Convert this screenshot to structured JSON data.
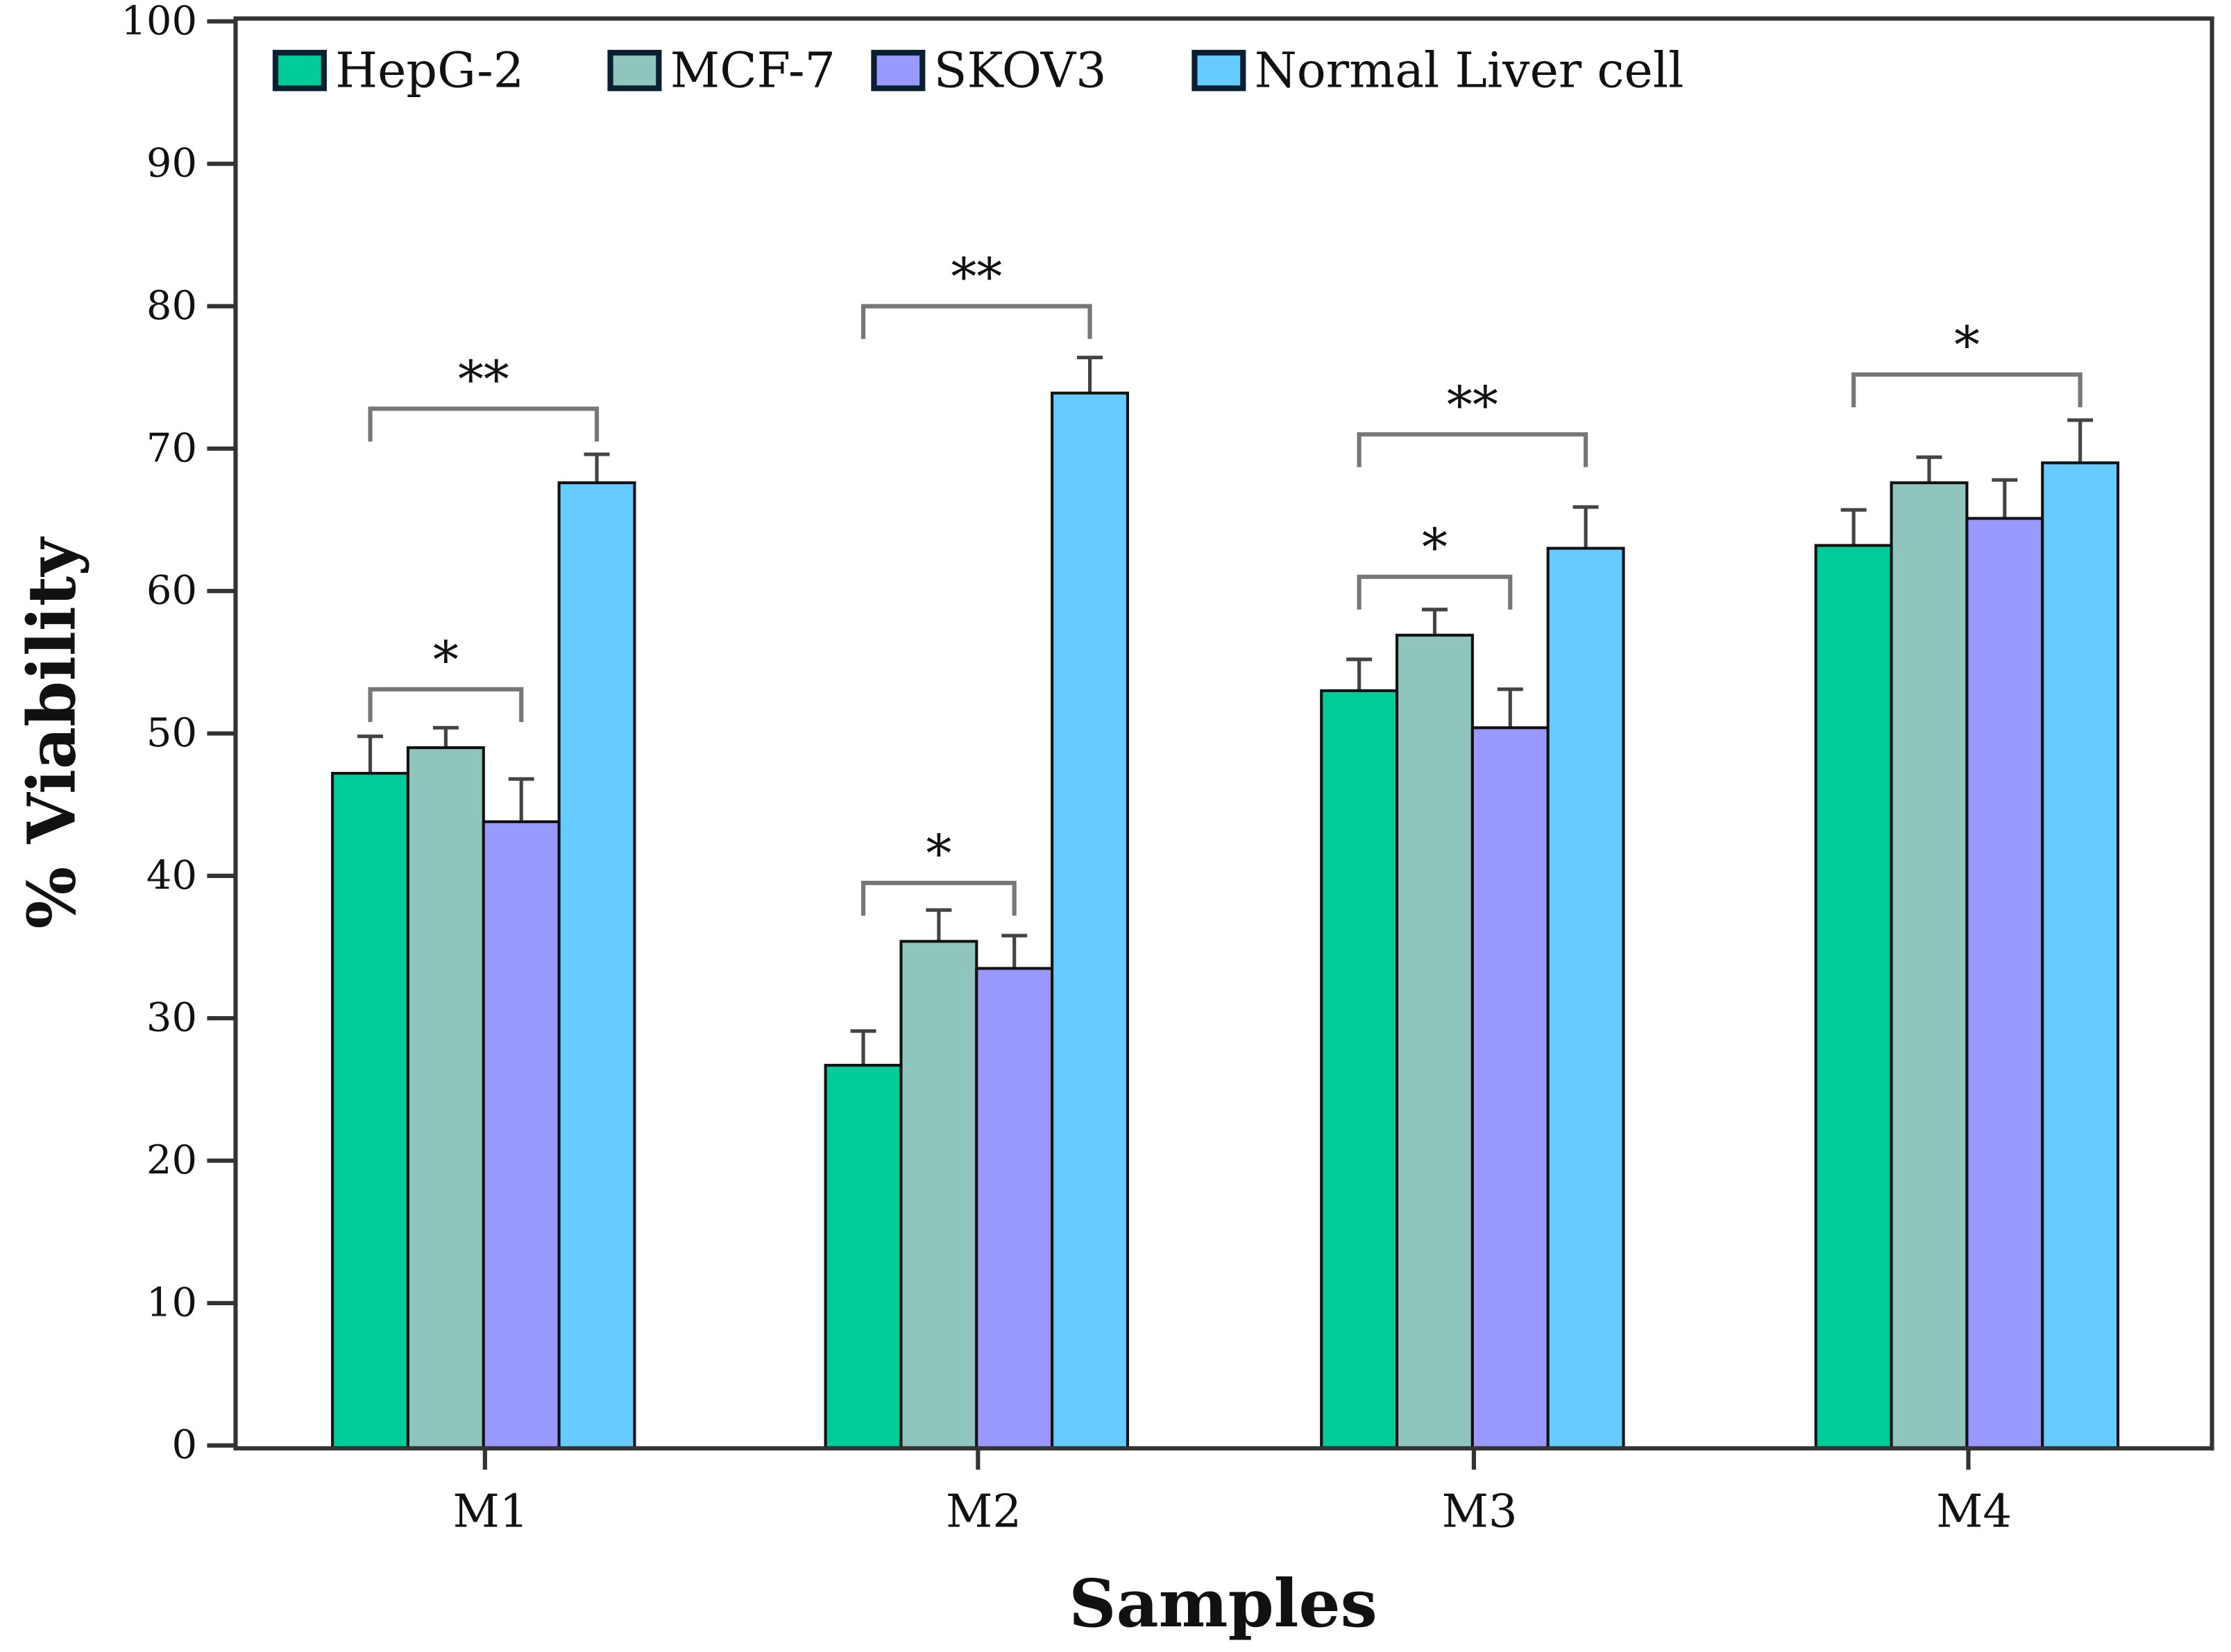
{
  "chart_data": {
    "type": "bar",
    "title": "",
    "xlabel": "Samples",
    "ylabel": "% Viability",
    "ylim": [
      0,
      100
    ],
    "yticks": [
      0,
      10,
      20,
      30,
      40,
      50,
      60,
      70,
      80,
      90,
      100
    ],
    "categories": [
      "M1",
      "M2",
      "M3",
      "M4"
    ],
    "legend_position": "top-left",
    "series": [
      {
        "name": "HepG-2",
        "color": "#00CC99",
        "values": [
          47.2,
          26.7,
          53.0,
          63.2
        ],
        "errors": [
          2.6,
          2.4,
          2.2,
          2.5
        ]
      },
      {
        "name": "MCF-7",
        "color": "#8FC5BC",
        "values": [
          49.0,
          35.4,
          56.9,
          67.6
        ],
        "errors": [
          1.4,
          2.2,
          1.8,
          1.8
        ]
      },
      {
        "name": "SKOV3",
        "color": "#9999FF",
        "values": [
          43.8,
          33.5,
          50.4,
          65.1
        ],
        "errors": [
          3.0,
          2.3,
          2.7,
          2.7
        ]
      },
      {
        "name": "Normal Liver cell",
        "color": "#66CCFF",
        "values": [
          67.6,
          73.9,
          63.0,
          69.0
        ],
        "errors": [
          2.0,
          2.5,
          2.9,
          3.0
        ]
      }
    ],
    "significance": [
      {
        "category": 0,
        "from": 0,
        "to": 2,
        "y": 53.1,
        "label": "*"
      },
      {
        "category": 0,
        "from": 0,
        "to": 3,
        "y": 72.8,
        "label": "**"
      },
      {
        "category": 1,
        "from": 0,
        "to": 2,
        "y": 39.5,
        "label": "*"
      },
      {
        "category": 1,
        "from": 0,
        "to": 3,
        "y": 80.0,
        "label": "**"
      },
      {
        "category": 2,
        "from": 0,
        "to": 2,
        "y": 61.0,
        "label": "*"
      },
      {
        "category": 2,
        "from": 0,
        "to": 3,
        "y": 71.0,
        "label": "**"
      },
      {
        "category": 3,
        "from": 0,
        "to": 3,
        "y": 75.2,
        "label": "*"
      }
    ]
  }
}
